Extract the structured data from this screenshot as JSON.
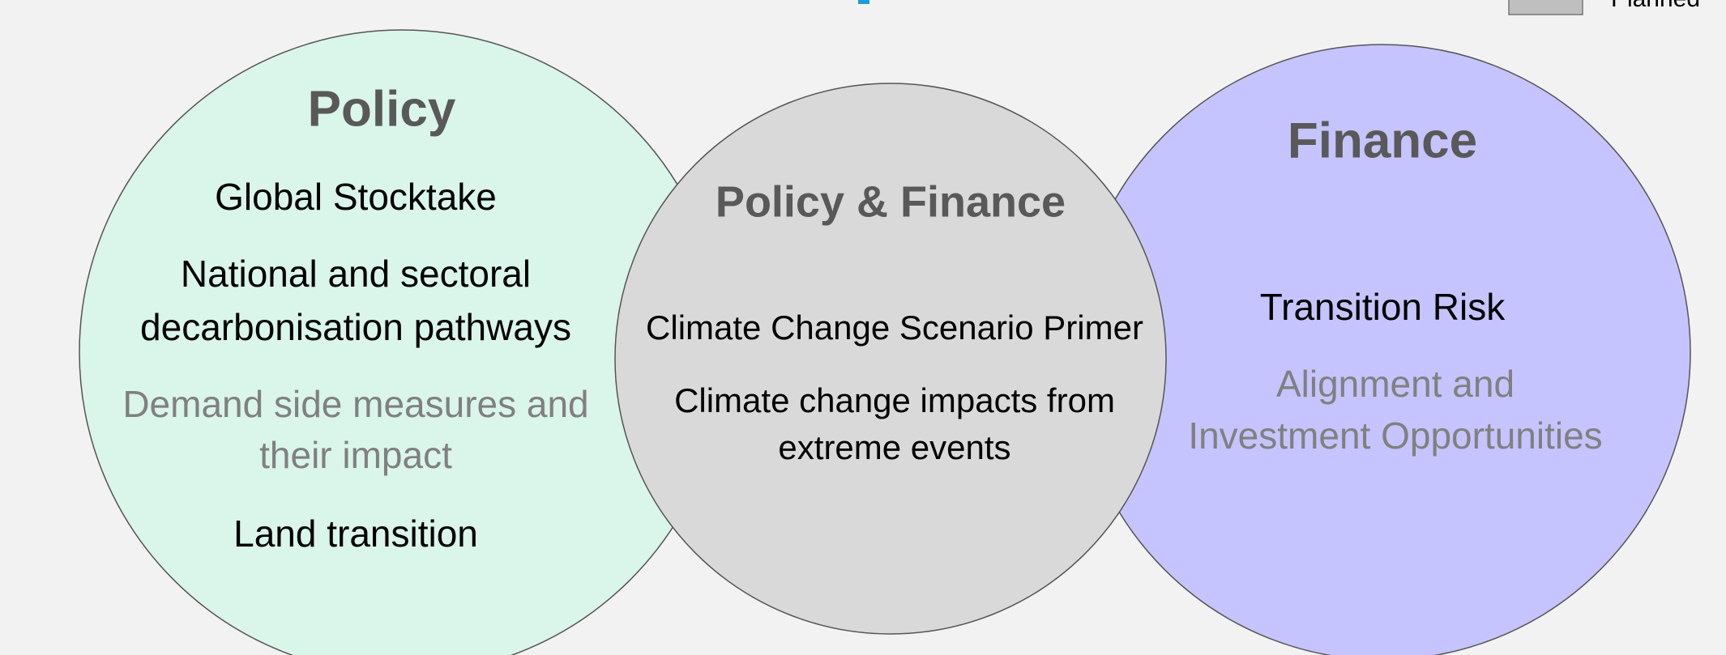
{
  "legend": {
    "label": "Planned"
  },
  "circles": [
    {
      "title": "Policy",
      "items": [
        {
          "lines": [
            "Global Stocktake"
          ],
          "planned": false
        },
        {
          "lines": [
            "National and sectoral",
            "decarbonisation pathways"
          ],
          "planned": false
        },
        {
          "lines": [
            "Demand side measures  and",
            "their impact"
          ],
          "planned": true
        },
        {
          "lines": [
            "Land transition"
          ],
          "planned": false
        }
      ]
    },
    {
      "title": "Policy & Finance",
      "items": [
        {
          "lines": [
            "Climate Change Scenario Primer"
          ],
          "planned": false
        },
        {
          "lines": [
            "Climate change impacts from",
            "extreme events"
          ],
          "planned": false
        }
      ]
    },
    {
      "title": "Finance",
      "items": [
        {
          "lines": [
            "Transition Risk"
          ],
          "planned": false
        },
        {
          "lines": [
            "Alignment and",
            "Investment Opportunities"
          ],
          "planned": true
        }
      ]
    }
  ]
}
